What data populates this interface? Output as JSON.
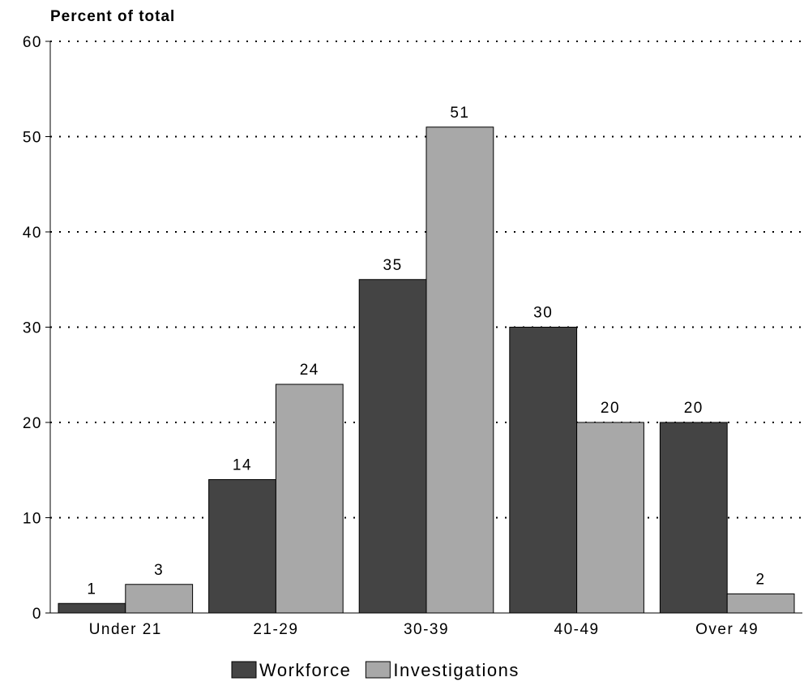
{
  "chart_data": {
    "type": "bar",
    "title": "",
    "ylabel": "Percent of total",
    "xlabel": "",
    "categories": [
      "Under 21",
      "21-29",
      "30-39",
      "40-49",
      "Over 49"
    ],
    "series": [
      {
        "name": "Workforce",
        "values": [
          1,
          14,
          35,
          30,
          20
        ],
        "color": "#444444"
      },
      {
        "name": "Investigations",
        "values": [
          3,
          24,
          51,
          20,
          2
        ],
        "color": "#a8a8a8"
      }
    ],
    "ylim": [
      0,
      60
    ],
    "yticks": [
      0,
      10,
      20,
      30,
      40,
      50,
      60
    ],
    "grid": true,
    "grid_style": "dotted",
    "legend_position": "bottom-center",
    "data_labels": true
  }
}
